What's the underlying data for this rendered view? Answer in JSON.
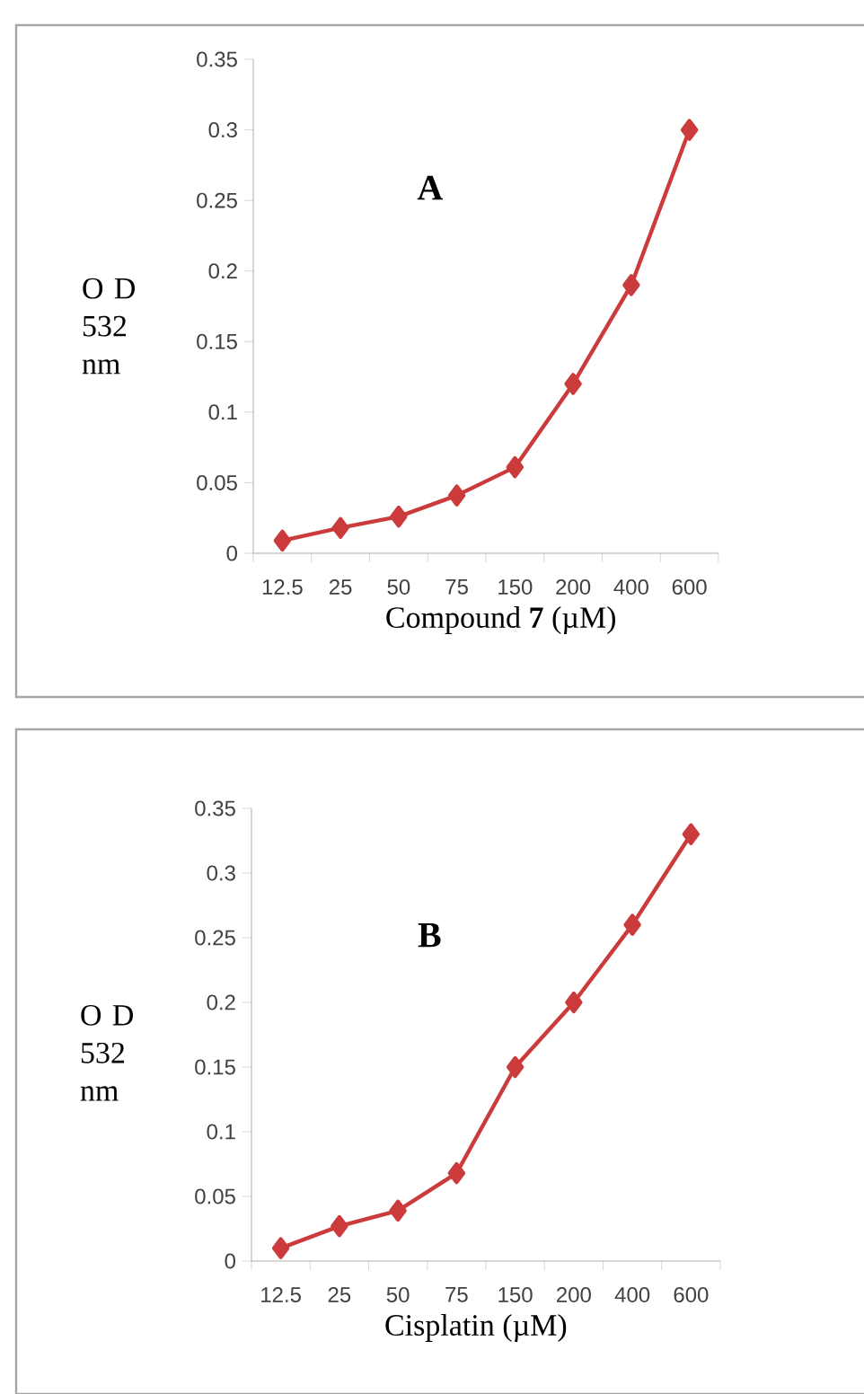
{
  "chart_data": [
    {
      "type": "line",
      "annotations": [
        "A"
      ],
      "xlabel": "Compound **7** (µM)",
      "ylabel": "O D 532 nm",
      "categories": [
        "12.5",
        "25",
        "50",
        "75",
        "150",
        "200",
        "400",
        "600"
      ],
      "series": [
        {
          "color": "#cc3b3b",
          "values": [
            0.009,
            0.018,
            0.026,
            0.041,
            0.061,
            0.12,
            0.19,
            0.3
          ]
        }
      ],
      "ylim": [
        0,
        0.35
      ],
      "yticks": [
        0,
        0.05,
        0.1,
        0.15,
        0.2,
        0.25,
        0.3,
        0.35
      ],
      "grid": false,
      "marker": "diamond",
      "line_style": "solid"
    },
    {
      "type": "line",
      "annotations": [
        "B"
      ],
      "xlabel": "Cisplatin (µM)",
      "ylabel": "O D 532 nm",
      "categories": [
        "12.5",
        "25",
        "50",
        "75",
        "150",
        "200",
        "400",
        "600"
      ],
      "series": [
        {
          "color": "#cc3b3b",
          "values": [
            0.01,
            0.027,
            0.039,
            0.068,
            0.15,
            0.2,
            0.26,
            0.33
          ]
        }
      ],
      "ylim": [
        0,
        0.35
      ],
      "yticks": [
        0,
        0.05,
        0.1,
        0.15,
        0.2,
        0.25,
        0.3,
        0.35
      ],
      "grid": false,
      "marker": "diamond",
      "line_style": "solid"
    }
  ]
}
